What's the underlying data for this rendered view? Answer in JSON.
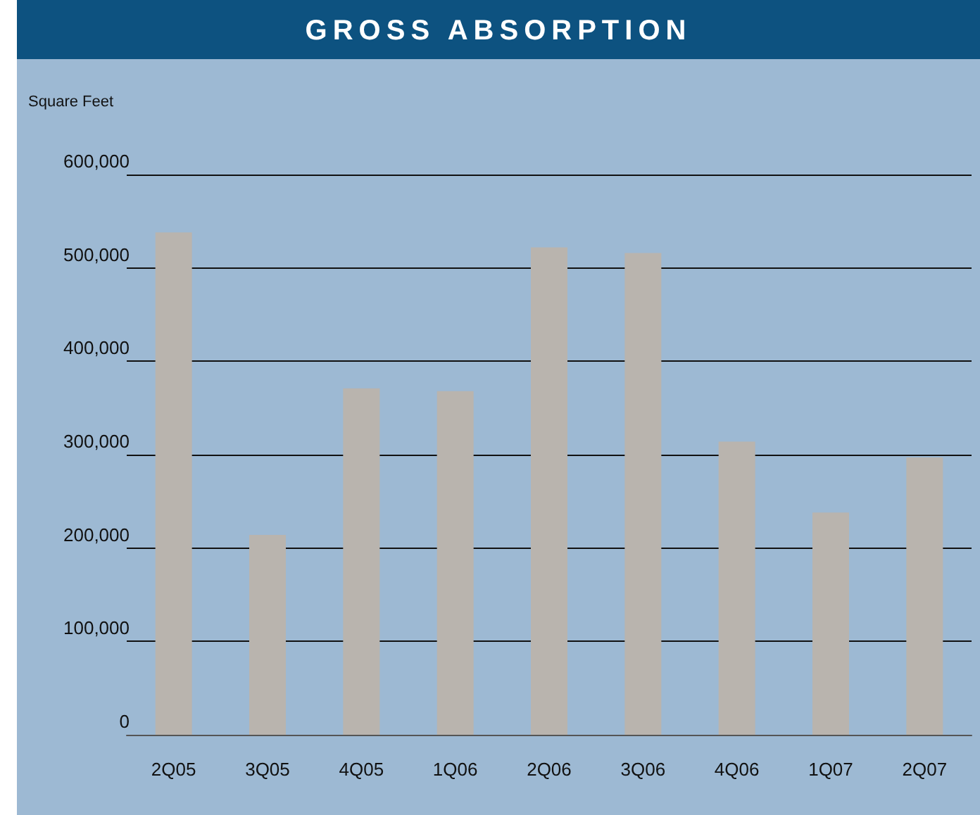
{
  "chart_data": {
    "type": "bar",
    "title": "GROSS ABSORPTION",
    "ylabel": "Square Feet",
    "categories": [
      "2Q05",
      "3Q05",
      "4Q05",
      "1Q06",
      "2Q06",
      "3Q06",
      "4Q06",
      "1Q07",
      "2Q07"
    ],
    "values": [
      538000,
      214000,
      371000,
      368000,
      522000,
      516000,
      314000,
      238000,
      297000
    ],
    "color": "#b9b4ae",
    "ylim": [
      0,
      600000
    ],
    "yticks": [
      {
        "value": 0,
        "label": "0"
      },
      {
        "value": 100000,
        "label": "100,000"
      },
      {
        "value": 200000,
        "label": "200,000"
      },
      {
        "value": 300000,
        "label": "300,000"
      },
      {
        "value": 400000,
        "label": "400,000"
      },
      {
        "value": 500000,
        "label": "500,000"
      },
      {
        "value": 600000,
        "label": "600,000"
      }
    ],
    "grid": "y"
  }
}
